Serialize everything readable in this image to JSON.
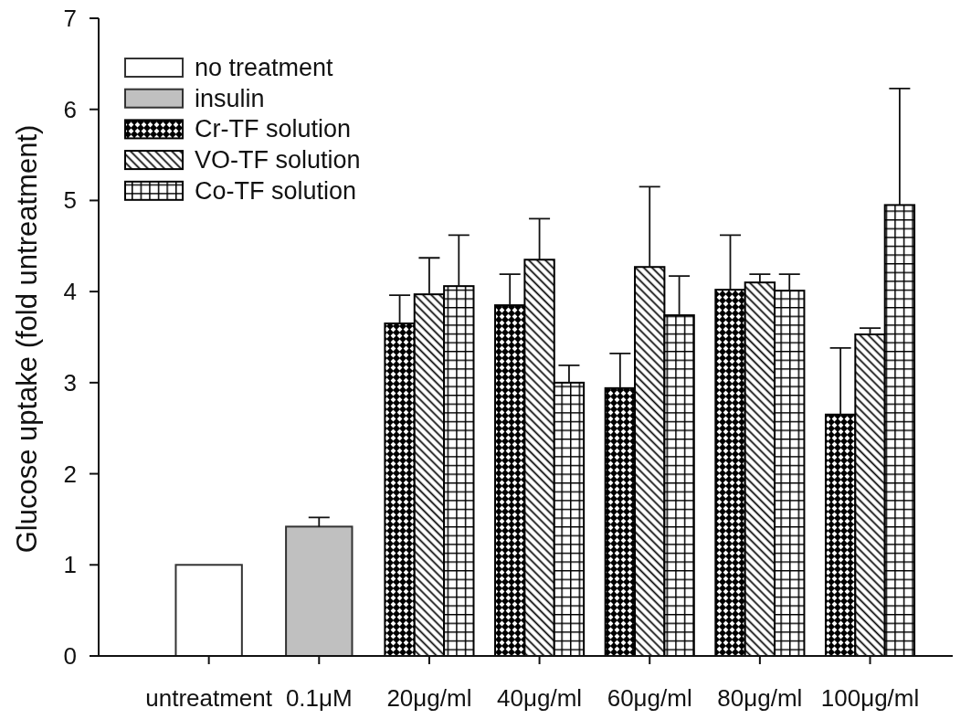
{
  "chart_data": {
    "type": "bar",
    "ylabel": "Glucose uptake (fold untreatment)",
    "categories": [
      "untreatment",
      "0.1μM",
      "20μg/ml",
      "40μg/ml",
      "60μg/ml",
      "80μg/ml",
      "100μg/ml"
    ],
    "series": [
      {
        "name": "no treatment",
        "color": "#ffffff",
        "values": [
          1.0,
          null,
          null,
          null,
          null,
          null,
          null
        ]
      },
      {
        "name": "insulin",
        "color": "#c0c0c0",
        "values": [
          null,
          1.42,
          null,
          null,
          null,
          null,
          null
        ],
        "errors": [
          null,
          [
            1.42,
            1.52
          ],
          null,
          null,
          null,
          null,
          null
        ]
      },
      {
        "name": "Cr-TF solution",
        "color": "#000000",
        "values": [
          null,
          null,
          3.65,
          3.85,
          2.94,
          4.02,
          2.65
        ],
        "errors": [
          null,
          null,
          [
            3.65,
            3.96
          ],
          [
            3.85,
            4.19
          ],
          [
            2.94,
            3.32
          ],
          [
            4.02,
            4.62
          ],
          [
            2.65,
            3.38
          ]
        ]
      },
      {
        "name": "VO-TF solution",
        "color": "#000000",
        "values": [
          null,
          null,
          3.97,
          4.35,
          4.27,
          4.1,
          3.53
        ],
        "errors": [
          null,
          null,
          [
            3.97,
            4.37
          ],
          [
            4.35,
            4.8
          ],
          [
            4.27,
            5.15
          ],
          [
            4.1,
            4.19
          ],
          [
            3.53,
            3.6
          ]
        ]
      },
      {
        "name": "Co-TF solution",
        "color": "#000000",
        "values": [
          null,
          null,
          4.06,
          3.0,
          3.74,
          4.01,
          4.95
        ],
        "errors": [
          null,
          null,
          [
            4.06,
            4.62
          ],
          [
            3.0,
            3.19
          ],
          [
            3.74,
            4.17
          ],
          [
            4.01,
            4.19
          ],
          [
            4.95,
            6.23
          ]
        ]
      }
    ],
    "ylim": [
      0,
      7
    ],
    "yticks": [
      0,
      1,
      2,
      3,
      4,
      5,
      6,
      7
    ],
    "legend": "top left"
  }
}
